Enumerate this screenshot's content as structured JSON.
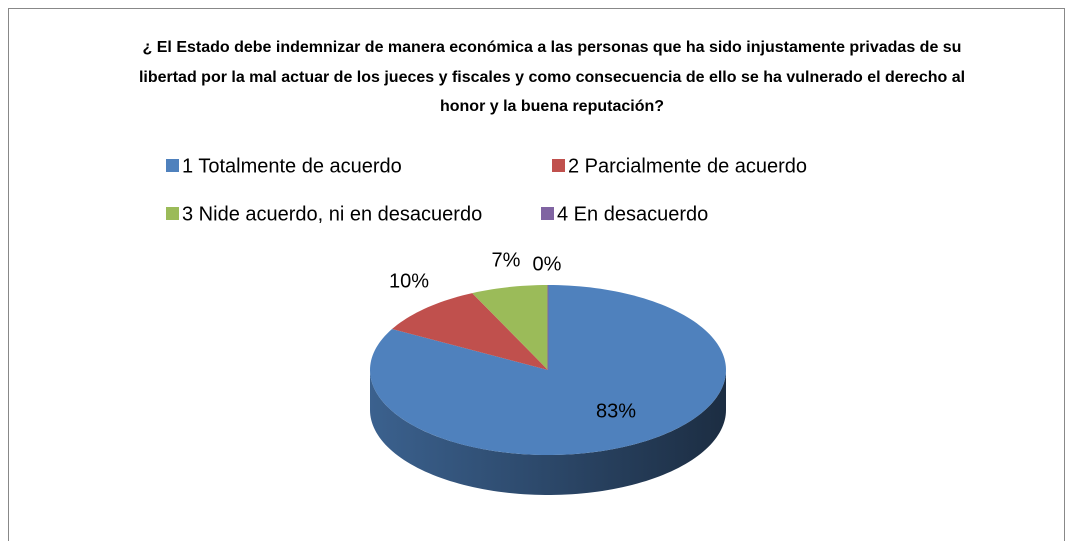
{
  "chart_data": {
    "type": "pie",
    "title": "¿ El Estado debe indemnizar de manera económica a las personas que ha sido injustamente privadas de su libertad por la mal actuar de los jueces y fiscales y como consecuencia de ello se ha vulnerado el derecho al honor y la buena reputación?",
    "categories": [
      "1 Totalmente de acuerdo",
      "2 Parcialmente de acuerdo",
      "3 Nide acuerdo, ni en desacuerdo",
      "4 En desacuerdo"
    ],
    "values": [
      83,
      10,
      7,
      0
    ],
    "value_labels": [
      "83%",
      "10%",
      "7%",
      "0%"
    ],
    "colors": [
      "#4F81BD",
      "#C0504D",
      "#9BBB59",
      "#8064A2"
    ],
    "legend": "top"
  }
}
